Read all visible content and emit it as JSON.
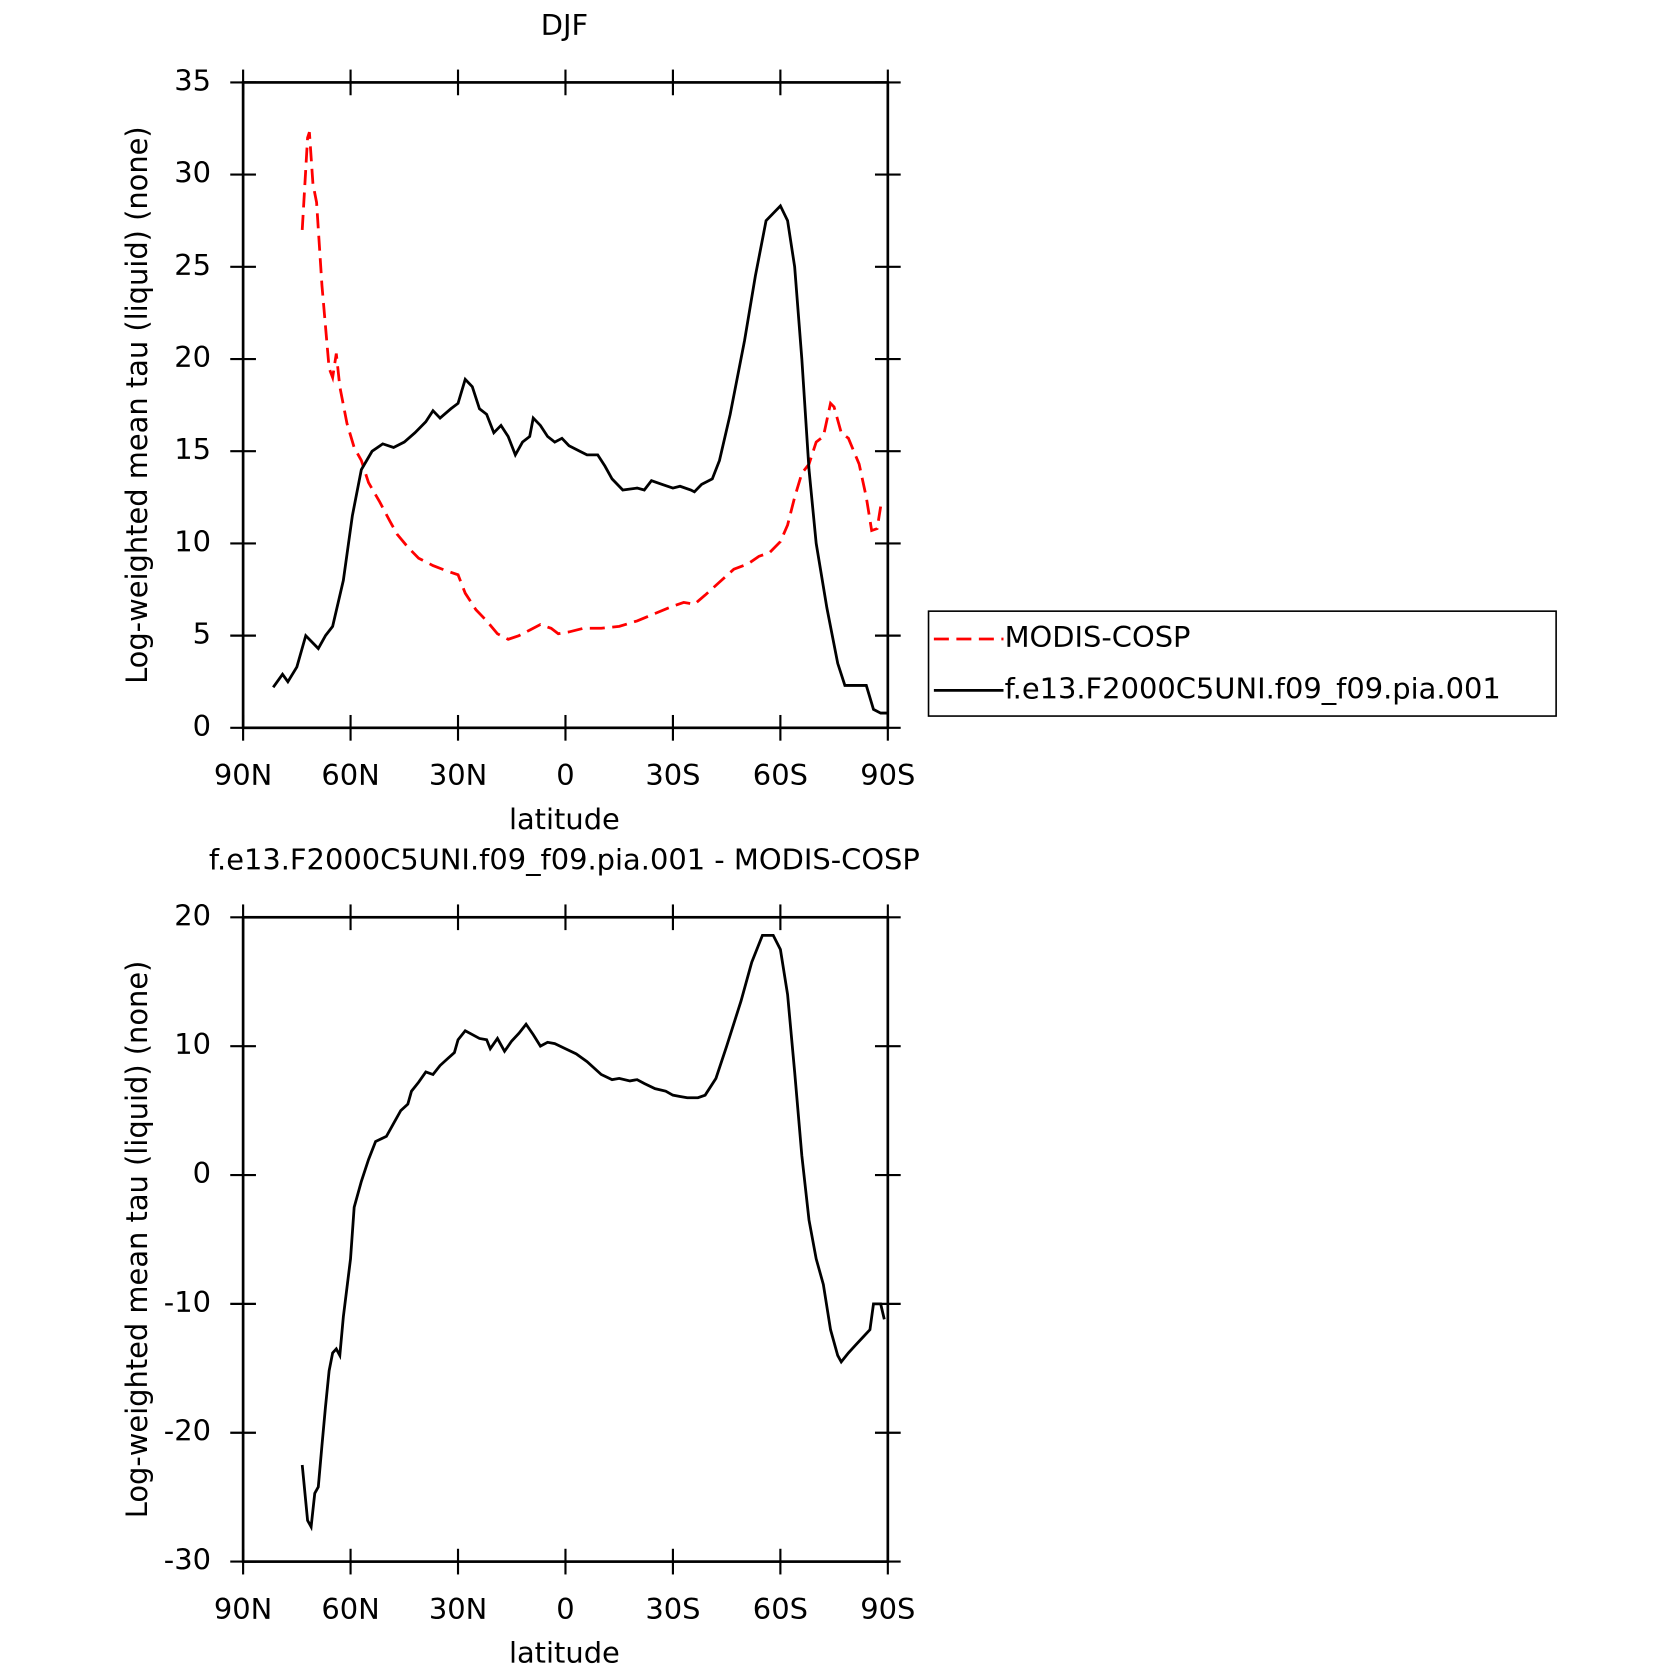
{
  "chart_data": [
    {
      "type": "line",
      "title": "DJF",
      "xlabel": "latitude",
      "ylabel": "Log-weighted mean tau (liquid) (none)",
      "xlim": [
        90,
        -90
      ],
      "xticks": [
        {
          "value": 90,
          "label": "90N"
        },
        {
          "value": 60,
          "label": "60N"
        },
        {
          "value": 30,
          "label": "30N"
        },
        0,
        {
          "value": -30,
          "label": "30S"
        },
        {
          "value": -60,
          "label": "60S"
        },
        {
          "value": -90,
          "label": "90S"
        }
      ],
      "ylim": [
        0,
        35
      ],
      "yticks": [
        0,
        5,
        10,
        15,
        20,
        25,
        30,
        35
      ],
      "legend": "outside-right",
      "series": [
        {
          "name": "MODIS-COSP",
          "color": "#ff0000",
          "linestyle": "dashed",
          "x": [
            73.5,
            72,
            71.5,
            70.5,
            69.5,
            68,
            66,
            65,
            64,
            63,
            61,
            59,
            57,
            55,
            52,
            49,
            47,
            44,
            41,
            37,
            33,
            30,
            28,
            25,
            22,
            19,
            16,
            13,
            10,
            7,
            4,
            2,
            -1,
            -5,
            -10,
            -15,
            -20,
            -25,
            -30,
            -33,
            -36,
            -39,
            -43,
            -47,
            -51,
            -54,
            -57,
            -60,
            -62,
            -64,
            -66,
            -68,
            -70,
            -72,
            -74,
            -75,
            -77,
            -79,
            -82,
            -84,
            -85.5,
            -87,
            -88
          ],
          "values": [
            27,
            32,
            32.3,
            29.5,
            28.5,
            24,
            19.5,
            19,
            20.3,
            18.5,
            16.5,
            15.2,
            14.5,
            13.3,
            12.3,
            11.2,
            10.5,
            9.8,
            9.2,
            8.8,
            8.5,
            8.3,
            7.3,
            6.4,
            5.8,
            5.1,
            4.8,
            5,
            5.3,
            5.6,
            5.4,
            5.1,
            5.2,
            5.4,
            5.4,
            5.5,
            5.8,
            6.2,
            6.6,
            6.8,
            6.7,
            7.2,
            7.9,
            8.6,
            8.9,
            9.3,
            9.5,
            10.1,
            11,
            12.5,
            13.8,
            14.3,
            15.5,
            15.8,
            17.6,
            17.4,
            16,
            15.7,
            14.3,
            12.5,
            10.7,
            10.8,
            12
          ]
        },
        {
          "name": "f.e13.F2000C5UNI.f09_f09.pia.001",
          "color": "#000000",
          "linestyle": "solid",
          "x": [
            81.6,
            79,
            77.5,
            75,
            72.5,
            69,
            67,
            65,
            62,
            59.5,
            57,
            54,
            51,
            48,
            45,
            42,
            39,
            37,
            35,
            32,
            30,
            28,
            26,
            24,
            22,
            20,
            18,
            16,
            14,
            12,
            10,
            9,
            7,
            5,
            3,
            1,
            -1,
            -4,
            -6,
            -9,
            -11,
            -13,
            -16,
            -20,
            -22,
            -24,
            -27,
            -30,
            -32,
            -35,
            -36,
            -38,
            -41,
            -43,
            -46,
            -50,
            -53,
            -56,
            -60,
            -62,
            -64,
            -66,
            -68,
            -70,
            -73,
            -76,
            -78,
            -81,
            -84,
            -86,
            -88,
            -90
          ],
          "values": [
            2.2,
            2.9,
            2.5,
            3.3,
            5,
            4.3,
            5,
            5.5,
            8,
            11.5,
            14,
            15,
            15.4,
            15.2,
            15.5,
            16,
            16.6,
            17.2,
            16.8,
            17.3,
            17.6,
            18.9,
            18.5,
            17.3,
            17,
            16,
            16.4,
            15.8,
            14.8,
            15.5,
            15.8,
            16.8,
            16.4,
            15.8,
            15.5,
            15.7,
            15.3,
            15,
            14.8,
            14.8,
            14.2,
            13.5,
            12.9,
            13,
            12.9,
            13.4,
            13.2,
            13,
            13.1,
            12.9,
            12.8,
            13.2,
            13.5,
            14.5,
            17,
            21,
            24.5,
            27.5,
            28.3,
            27.5,
            25,
            20,
            14,
            10,
            6.5,
            3.5,
            2.3,
            2.3,
            2.3,
            1,
            0.8,
            0.8
          ]
        }
      ]
    },
    {
      "type": "line",
      "title": "f.e13.F2000C5UNI.f09_f09.pia.001 - MODIS-COSP",
      "xlabel": "latitude",
      "ylabel": "Log-weighted mean tau (liquid) (none)",
      "xlim": [
        90,
        -90
      ],
      "xticks": [
        {
          "value": 90,
          "label": "90N"
        },
        {
          "value": 60,
          "label": "60N"
        },
        {
          "value": 30,
          "label": "30N"
        },
        0,
        {
          "value": -30,
          "label": "30S"
        },
        {
          "value": -60,
          "label": "60S"
        },
        {
          "value": -90,
          "label": "90S"
        }
      ],
      "ylim": [
        -30,
        20
      ],
      "yticks": [
        -30,
        -20,
        -10,
        0,
        10,
        20
      ],
      "series": [
        {
          "color": "#000000",
          "linestyle": "solid",
          "x": [
            73.5,
            72,
            71,
            70,
            69,
            68,
            67,
            66,
            65,
            64,
            63,
            62,
            60,
            59,
            57,
            55,
            53,
            50,
            48,
            46,
            44,
            43,
            41,
            39,
            37,
            35,
            33,
            31,
            30,
            28,
            26,
            24,
            22,
            21,
            19,
            17,
            15,
            13,
            11,
            9,
            7,
            5,
            3,
            0,
            -3,
            -6,
            -10,
            -13,
            -15,
            -18,
            -20,
            -22,
            -25,
            -28,
            -30,
            -32,
            -34,
            -37,
            -39,
            -42,
            -45,
            -49,
            -52,
            -55,
            -58,
            -60,
            -62,
            -64,
            -66,
            -68,
            -70,
            -72,
            -74,
            -76,
            -77,
            -79,
            -81,
            -83,
            -85,
            -86,
            -88,
            -89
          ],
          "values": [
            -22.5,
            -26.8,
            -27.3,
            -24.7,
            -24.2,
            -21,
            -18,
            -15.2,
            -13.8,
            -13.5,
            -14,
            -11,
            -6.5,
            -2.5,
            -0.5,
            1.2,
            2.6,
            3,
            4,
            5,
            5.5,
            6.5,
            7.2,
            8,
            7.8,
            8.5,
            9,
            9.5,
            10.5,
            11.2,
            10.9,
            10.6,
            10.5,
            9.8,
            10.6,
            9.6,
            10.4,
            11,
            11.7,
            10.9,
            10,
            10.3,
            10.2,
            9.8,
            9.4,
            8.8,
            7.8,
            7.4,
            7.5,
            7.3,
            7.4,
            7.1,
            6.7,
            6.5,
            6.2,
            6.1,
            6,
            6,
            6.2,
            7.5,
            10,
            13.5,
            16.5,
            18.6,
            18.6,
            17.5,
            14,
            8,
            1.5,
            -3.5,
            -6.5,
            -8.5,
            -12,
            -14,
            -14.5,
            -13.8,
            -13.2,
            -12.6,
            -12,
            -10,
            -10,
            -11.2
          ]
        }
      ]
    }
  ]
}
